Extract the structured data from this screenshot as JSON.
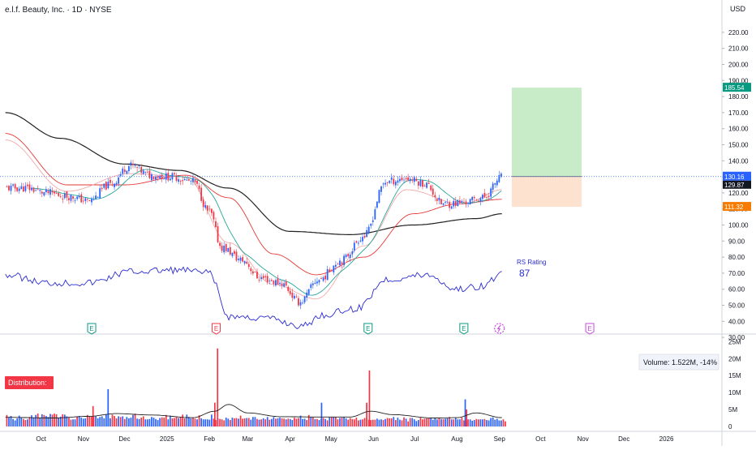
{
  "header": {
    "symbol_title": "e.l.f. Beauty, Inc. · 1D · NYSE",
    "currency": "USD"
  },
  "indicators": {
    "rs_label": "RS Rating",
    "rs_value": "87",
    "volume_readout": "Volume: 1.522M, -14%",
    "distribution_label": "Distribution:"
  },
  "colors": {
    "up": "#2962ff",
    "down": "#f23645",
    "ma_long": "#222222",
    "ma_mid": "#e53935",
    "ma_mid_light": "#f0a0a0",
    "ma_short": "#26a69a",
    "rs_line": "#2b2bd1",
    "target_zone": "#c8ebc8",
    "stop_zone": "#fde3cf",
    "last_price_badge": "#2962ff",
    "target_badge": "#089981",
    "stop_badge": "#f57c00",
    "distribution_badge": "#f23645",
    "earnings_past": "#089981",
    "earnings_miss": "#f23645",
    "earnings_future": "#c84be0"
  },
  "chart_data": [
    {
      "type": "line",
      "title": "",
      "x_tick_labels": [
        "Oct",
        "Nov",
        "Dec",
        "2025",
        "Feb",
        "Mar",
        "Apr",
        "May",
        "Jun",
        "Jul",
        "Aug",
        "Sep",
        "Oct",
        "Nov",
        "Dec",
        "2026"
      ],
      "y_axis": {
        "unit": "USD",
        "ylim": [
          25,
          225
        ],
        "tick_labels": [
          "220.00",
          "210.00",
          "200.00",
          "190.00",
          "180.00",
          "170.00",
          "160.00",
          "150.00",
          "140.00",
          "130.00",
          "120.00",
          "110.00",
          "100.00",
          "90.00",
          "80.00",
          "70.00",
          "60.00",
          "50.00",
          "40.00",
          "30.00"
        ]
      },
      "grid": false,
      "price_close": {
        "x": [
          "2024-09-20",
          "2024-10-05",
          "2024-10-20",
          "2024-11-05",
          "2024-11-20",
          "2024-12-05",
          "2024-12-20",
          "2025-01-05",
          "2025-01-20",
          "2025-02-01",
          "2025-02-10",
          "2025-02-25",
          "2025-03-10",
          "2025-03-25",
          "2025-04-08",
          "2025-04-22",
          "2025-05-08",
          "2025-05-25",
          "2025-06-10",
          "2025-06-25",
          "2025-07-08",
          "2025-07-22",
          "2025-08-05",
          "2025-08-20",
          "2025-09-03"
        ],
        "values": [
          123,
          120,
          118,
          115,
          125,
          137,
          131,
          130,
          127,
          108,
          86,
          78,
          67,
          64,
          52,
          66,
          78,
          93,
          127,
          129,
          126,
          113,
          114,
          117,
          130
        ]
      },
      "moving_averages": [
        {
          "x": [
            "2024-09-05",
            "2024-10-15",
            "2024-12-01",
            "2025-01-10",
            "2025-02-15",
            "2025-04-01",
            "2025-05-15",
            "2025-06-30",
            "2025-08-15",
            "2025-09-03"
          ],
          "values": [
            170,
            154,
            138,
            134,
            123,
            96,
            94,
            100,
            104,
            107
          ]
        },
        {
          "x": [
            "2024-09-05",
            "2024-10-20",
            "2024-12-01",
            "2025-01-15",
            "2025-02-15",
            "2025-03-20",
            "2025-04-20",
            "2025-05-25",
            "2025-06-30",
            "2025-08-01",
            "2025-09-03"
          ],
          "values": [
            157,
            125,
            125,
            131,
            117,
            82,
            69,
            80,
            107,
            113,
            116
          ]
        },
        {
          "x": [
            "2024-09-05",
            "2024-10-20",
            "2024-12-05",
            "2025-01-15",
            "2025-02-15",
            "2025-03-20",
            "2025-04-20",
            "2025-05-25",
            "2025-06-25",
            "2025-08-05",
            "2025-09-03"
          ],
          "values": [
            153,
            121,
            132,
            130,
            89,
            63,
            54,
            87,
            122,
            113,
            122
          ]
        }
      ],
      "last_price": 130.16,
      "prior_close": 129.87,
      "trade_setup": {
        "target": 185.54,
        "entry": 130.16,
        "stop": 111.32,
        "start": "2025-09-10",
        "end": "2025-10-31"
      },
      "rs_line": {
        "x": [
          "2024-09-05",
          "2024-10-05",
          "2024-11-05",
          "2024-12-05",
          "2025-01-10",
          "2025-02-01",
          "2025-02-15",
          "2025-03-15",
          "2025-04-10",
          "2025-04-25",
          "2025-05-20",
          "2025-06-10",
          "2025-07-10",
          "2025-08-01",
          "2025-08-20",
          "2025-09-03"
        ],
        "values": [
          69,
          64,
          64,
          71,
          72,
          70,
          43,
          42,
          37,
          44,
          48,
          66,
          69,
          60,
          62,
          70
        ]
      },
      "events": [
        {
          "date": "2024-11-07",
          "label": "E"
        },
        {
          "date": "2025-02-06",
          "label": "E"
        },
        {
          "date": "2025-05-28",
          "label": "E"
        },
        {
          "date": "2025-08-06",
          "label": "E"
        },
        {
          "date": "2025-09-01",
          "label": "dividend"
        },
        {
          "date": "2025-11-06",
          "label": "E"
        }
      ]
    },
    {
      "type": "bar",
      "title": "",
      "y_axis": {
        "ylim": [
          0,
          27
        ],
        "tick_labels": [
          "25M",
          "20M",
          "15M",
          "10M",
          "5M",
          "0"
        ]
      },
      "volume_millions": [
        3.4,
        2.6,
        3.1,
        2.2,
        1.8,
        2.4,
        3.2,
        2.7,
        2.2,
        1.9,
        2.1,
        2.8,
        3.3,
        2.6,
        3.4,
        3.8,
        2.5,
        3.6,
        3.4,
        3.1,
        2.8,
        3.7,
        3.5,
        3.8,
        3.6,
        2.5,
        2.9,
        3.6,
        3.5,
        3.0,
        2.7,
        2.0,
        2.1,
        2.1,
        2.9,
        3.1,
        2.6,
        2.3,
        2.4,
        3.4,
        2.9,
        2.9,
        2.9,
        3.0,
        2.4,
        2.8,
        3.0,
        2.4,
        3.5,
        3.8,
        2.4,
        3.5,
        3.1,
        2.4,
        3.0,
        2.8,
        3.0,
        2.2,
        2.8,
        2.4,
        2.6,
        3.4,
        3.8,
        2.3,
        2.2,
        2.6,
        3.0,
        2.1,
        2.1,
        2.2,
        2.8,
        2.6,
        2.2,
        1.9,
        2.5,
        2.7,
        2.6,
        3.4,
        2.1,
        3.2,
        2.4,
        2.5,
        2.8,
        2.5,
        2.7,
        3.5,
        2.4,
        3.5,
        2.8,
        2.4,
        2.6,
        2.3,
        2.1,
        3.3,
        2.4,
        2.1,
        2.1,
        2.1,
        2.0,
        3.5,
        2.3,
        1.9,
        2.4,
        2.2,
        2.1,
        1.8,
        2.6,
        2.3,
        1.9,
        2.6,
        2.4,
        2.5,
        2.3,
        3.2,
        2.3,
        2.4,
        2.5,
        2.5,
        2.0,
        2.8,
        2.8,
        2.2,
        2.0,
        2.1,
        2.4,
        2.1,
        2.8,
        2.0,
        2.2,
        2.8,
        2.3,
        2.4,
        2.6,
        2.4,
        2.3,
        2.1,
        2.3,
        2.2,
        1.9,
        2.6,
        2.3,
        2.5,
        3.2,
        2.2,
        2.3,
        1.9,
        3.4,
        2.8,
        2.7,
        2.2,
        2.2,
        1.9,
        2.3,
        2.5,
        2.2,
        1.8,
        2.7,
        2.7,
        2.8,
        2.8,
        2.1,
        2.5,
        2.6,
        2.8,
        2.4,
        2.0,
        2.5,
        2.2,
        2.1,
        2.6,
        1.8,
        2.0,
        2.1,
        2.5,
        2.5,
        2.0,
        1.9,
        2.0,
        2.0,
        2.3,
        2.0,
        2.1,
        1.9,
        2.2,
        2.5,
        2.4,
        2.4,
        2.8,
        1.9,
        2.6,
        2.0,
        1.8,
        2.7,
        2.3,
        1.5,
        2.5,
        2.5,
        2.1,
        1.6,
        1.9,
        2.6,
        2.1,
        2.3,
        2.4,
        2.4,
        2.5,
        2.0,
        2.4,
        2.1,
        2.5,
        2.2,
        2.2,
        2.3,
        2.4,
        2.8,
        2.1,
        2.1,
        2.5,
        2.1,
        2.1,
        2.6,
        1.8,
        1.6,
        2.1,
        2.1,
        1.7,
        1.9,
        2.2,
        2.1,
        2.1,
        2.1,
        2.2,
        1.9,
        1.8,
        2.5,
        2.7,
        2.0,
        2.3,
        1.8,
        1.8,
        2.1,
        1.522
      ],
      "volume_spikes": [
        {
          "date": "2024-11-08",
          "value": 6
        },
        {
          "date": "2024-11-19",
          "value": 11
        },
        {
          "date": "2025-02-07",
          "value": 23
        },
        {
          "date": "2025-02-05",
          "value": 7
        },
        {
          "date": "2025-04-24",
          "value": 7
        },
        {
          "date": "2025-05-29",
          "value": 16.5
        },
        {
          "date": "2025-05-27",
          "value": 7
        },
        {
          "date": "2025-08-07",
          "value": 8
        },
        {
          "date": "2025-08-08",
          "value": 5
        }
      ],
      "volume_average": {
        "x": [
          "2024-09-05",
          "2024-10-10",
          "2024-11-05",
          "2024-11-25",
          "2024-12-20",
          "2025-01-20",
          "2025-02-05",
          "2025-02-15",
          "2025-03-01",
          "2025-03-25",
          "2025-04-20",
          "2025-05-15",
          "2025-05-30",
          "2025-06-15",
          "2025-07-15",
          "2025-08-01",
          "2025-08-15",
          "2025-09-03"
        ],
        "values": [
          2.7,
          2.5,
          3.0,
          3.8,
          3.4,
          2.6,
          4.5,
          6.5,
          4.0,
          2.9,
          2.8,
          2.8,
          4.5,
          3.5,
          2.5,
          2.6,
          4.0,
          2.6
        ]
      },
      "last_volume": 1.522
    }
  ]
}
